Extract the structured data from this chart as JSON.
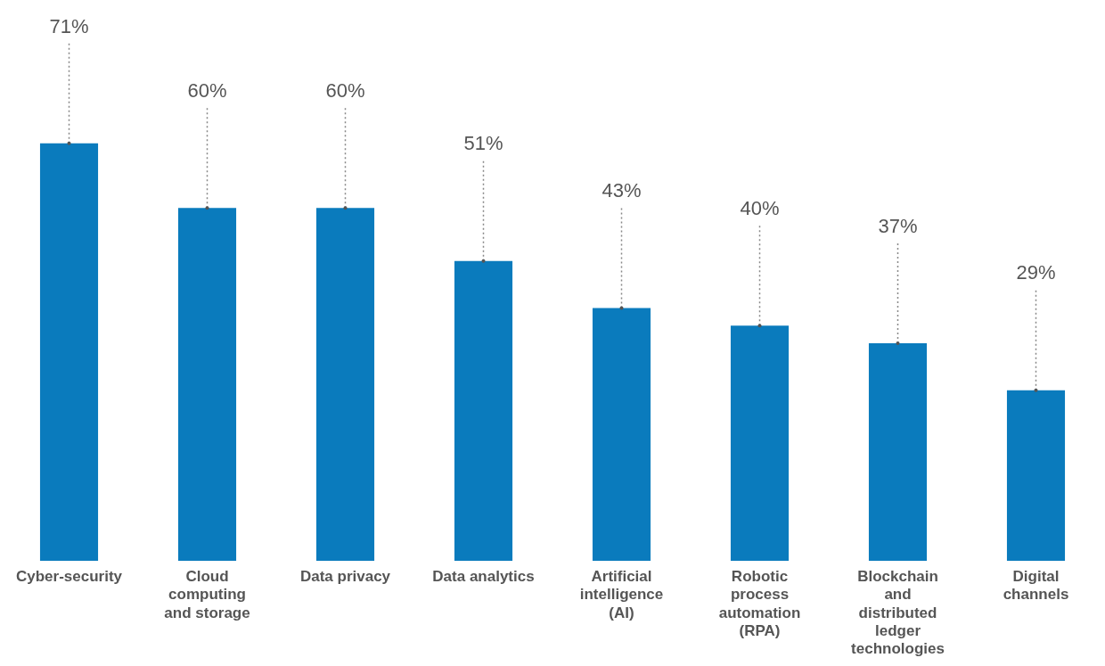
{
  "chart_data": {
    "type": "bar",
    "categories": [
      "Cyber-security",
      "Cloud computing and storage",
      "Data privacy",
      "Data analytics",
      "Artificial intelligence (AI)",
      "Robotic process automation (RPA)",
      "Blockchain and distributed ledger technologies",
      "Digital channels"
    ],
    "values": [
      71,
      60,
      60,
      51,
      43,
      40,
      37,
      29
    ],
    "value_labels": [
      "71%",
      "60%",
      "60%",
      "51%",
      "43%",
      "40%",
      "37%",
      "29%"
    ],
    "color": "#0a7bbd",
    "grid": false,
    "legend": false,
    "tick_labels": "x"
  }
}
